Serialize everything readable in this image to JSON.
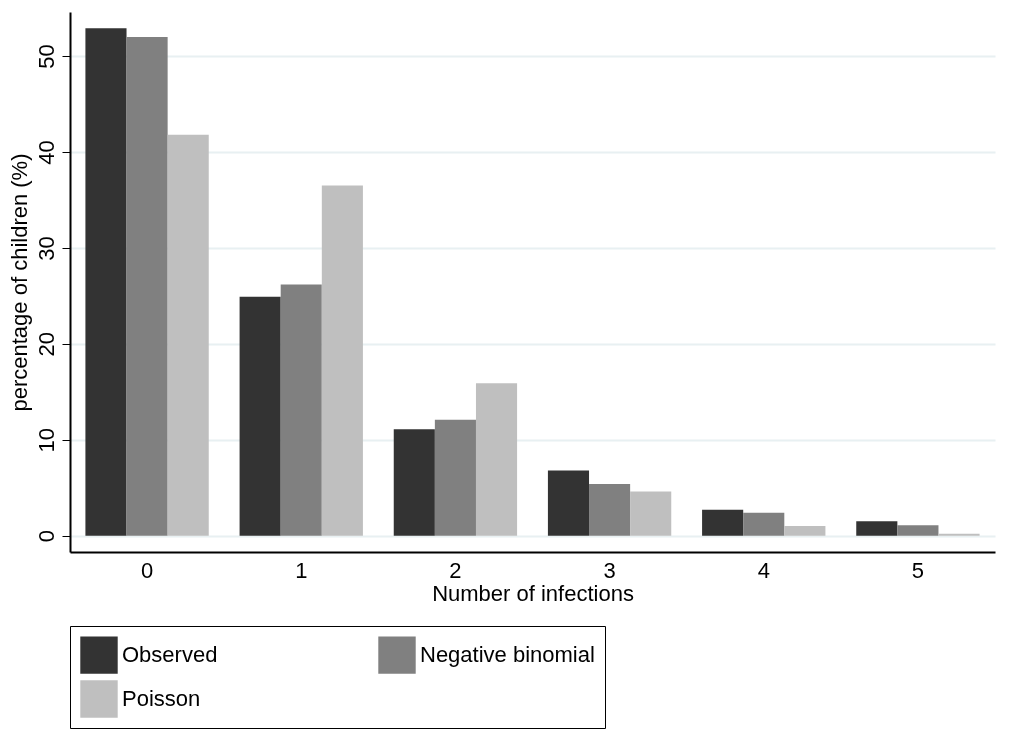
{
  "chart_data": {
    "type": "bar",
    "xlabel": "Number of infections",
    "ylabel": "percentage of children (%)",
    "categories": [
      "0",
      "1",
      "2",
      "3",
      "4",
      "5"
    ],
    "series": [
      {
        "name": "Observed",
        "color": "#333333",
        "values": [
          52.9,
          24.9,
          11.1,
          6.8,
          2.7,
          1.5
        ]
      },
      {
        "name": "Negative binomial",
        "color": "#808080",
        "values": [
          52.0,
          26.2,
          12.1,
          5.4,
          2.4,
          1.1
        ]
      },
      {
        "name": "Poisson",
        "color": "#bfbfbf",
        "values": [
          41.8,
          36.5,
          15.9,
          4.6,
          1.0,
          0.2
        ]
      }
    ],
    "ylim": [
      -1.7,
      54.6
    ],
    "yticks": [
      0,
      10,
      20,
      30,
      40,
      50
    ],
    "grid": "y",
    "legend": "bottom"
  }
}
